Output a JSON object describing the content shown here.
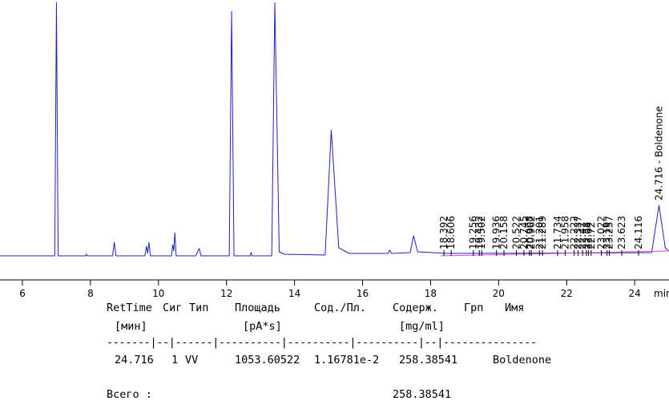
{
  "chart_data": {
    "type": "line",
    "x_label": "min",
    "xlim": [
      5.34,
      25.01
    ],
    "xticks": [
      6,
      8,
      10,
      12,
      14,
      16,
      18,
      20,
      22,
      24
    ],
    "ylim": [
      0,
      315
    ],
    "series": [
      {
        "color": "#2020c0",
        "x": [
          5.34,
          6.95,
          7.0,
          7.05,
          7.85,
          7.88,
          7.91,
          8.65,
          8.7,
          8.75,
          9.6,
          9.65,
          9.68,
          9.72,
          9.76,
          10.38,
          10.42,
          10.45,
          10.48,
          10.52,
          11.1,
          11.15,
          11.2,
          11.25,
          12.08,
          12.15,
          12.22,
          12.7,
          12.72,
          12.76,
          13.33,
          13.42,
          13.55,
          13.7,
          14.9,
          15.08,
          15.3,
          15.6,
          16.75,
          16.8,
          16.85,
          17.4,
          17.5,
          17.62,
          18.5,
          24.5,
          24.716,
          24.9,
          25.0
        ],
        "values": [
          0,
          0,
          316,
          0,
          0,
          2,
          0,
          0,
          17,
          0,
          0,
          12,
          3,
          17,
          0,
          0,
          14,
          6,
          29,
          0,
          0,
          5,
          9,
          0,
          0,
          305,
          0,
          0,
          4,
          0,
          0,
          316,
          5,
          2,
          1,
          157,
          10,
          3,
          3,
          7,
          3,
          4,
          25,
          5,
          3,
          4,
          63,
          10,
          6
        ]
      },
      {
        "color": "#e040e0",
        "x": [
          18.3,
          25.0
        ],
        "values": [
          0,
          6
        ]
      }
    ],
    "peaks": [
      18.392,
      18.606,
      19.256,
      19.432,
      19.502,
      19.936,
      20.158,
      20.522,
      20.745,
      20.908,
      20.962,
      21.201,
      21.289,
      21.734,
      21.958,
      22.222,
      22.337,
      22.47,
      22.58,
      22.64,
      22.72,
      23.022,
      23.19,
      23.257,
      23.623,
      24.116
    ],
    "annotation": "24.716 - Boldenone"
  },
  "report": {
    "header": [
      "RetTime",
      "Сиг",
      "Тип",
      "Площадь",
      "Сод./Пл.",
      "Содерж.",
      "Грп",
      "Имя"
    ],
    "units": [
      "[мин]",
      "[pA*s]",
      "[mg/ml]"
    ],
    "separator": "-------|--|------|----------|----------|----------|--|---------------",
    "row": [
      "24.716",
      "1",
      "VV",
      "1053.60522",
      "1.16781e-2",
      "258.38541",
      "Boldenone"
    ],
    "total_label": "Всего :",
    "total": "258.38541"
  }
}
